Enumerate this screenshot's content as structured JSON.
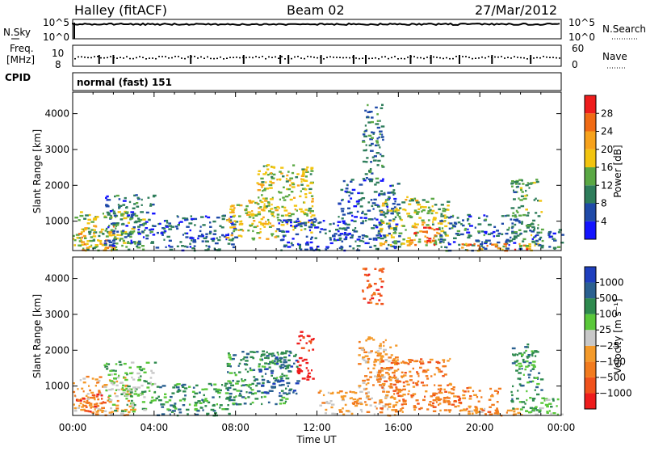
{
  "header": {
    "station": "Halley (fitACF)",
    "beam": "Beam 02",
    "date": "27/Mar/2012"
  },
  "strip_labels": {
    "nsky": "N.Sky",
    "freq_line1": "Freq.",
    "freq_line2": "[MHz]",
    "cpid": "CPID",
    "nsearch": "N.Search",
    "nave": "Nave",
    "mode": "normal (fast) 151",
    "nsky_ticks": [
      "10^5",
      "10^0"
    ],
    "nsearch_ticks": [
      "10^5",
      "10^0"
    ],
    "freq_ticks": [
      "10",
      "8"
    ],
    "nave_ticks": [
      "60",
      "0"
    ]
  },
  "colors": {
    "power_scale": [
      "#1414ff",
      "#1f4aa8",
      "#2e7d5b",
      "#5aa844",
      "#f2c40f",
      "#f7a21c",
      "#f06a14",
      "#ee1c1c"
    ],
    "velocity_scale": [
      "#ee1c1c",
      "#f0521c",
      "#f27b1e",
      "#f49a2a",
      "#c8c8c8",
      "#5ac83a",
      "#2e8a4e",
      "#2a6090",
      "#1e3fbe"
    ]
  },
  "chart_data": [
    {
      "type": "heatmap",
      "panel": "power",
      "ylabel": "Slant Range [km]",
      "xlabel": "Time UT",
      "x_ticks": [
        "00:00",
        "04:00",
        "08:00",
        "12:00",
        "16:00",
        "20:00",
        "00:00"
      ],
      "y_ticks": [
        "1000",
        "2000",
        "3000",
        "4000"
      ],
      "colorbar_label": "Power [dB]",
      "colorbar_ticks": [
        "4",
        "8",
        "12",
        "16",
        "20",
        "24",
        "28"
      ],
      "ylim": [
        180,
        4600
      ],
      "xlim_hours": [
        0,
        24
      ],
      "echo_regions": [
        {
          "t0": 0.0,
          "t1": 3.5,
          "r0": 200,
          "r1": 1300,
          "level": 14
        },
        {
          "t0": 0.0,
          "t1": 2.0,
          "r0": 200,
          "r1": 900,
          "level": 20
        },
        {
          "t0": 1.5,
          "t1": 4.0,
          "r0": 300,
          "r1": 1800,
          "level": 8
        },
        {
          "t0": 4.0,
          "t1": 8.0,
          "r0": 200,
          "r1": 1200,
          "level": 7
        },
        {
          "t0": 7.5,
          "t1": 10.0,
          "r0": 500,
          "r1": 1600,
          "level": 18
        },
        {
          "t0": 9.0,
          "t1": 11.8,
          "r0": 700,
          "r1": 2600,
          "level": 16
        },
        {
          "t0": 10.0,
          "t1": 13.5,
          "r0": 200,
          "r1": 1100,
          "level": 6
        },
        {
          "t0": 13.0,
          "t1": 16.0,
          "r0": 200,
          "r1": 2200,
          "level": 7
        },
        {
          "t0": 14.2,
          "t1": 15.2,
          "r0": 2200,
          "r1": 4300,
          "level": 10
        },
        {
          "t0": 15.0,
          "t1": 18.5,
          "r0": 350,
          "r1": 1700,
          "level": 16
        },
        {
          "t0": 16.5,
          "t1": 18.0,
          "r0": 350,
          "r1": 900,
          "level": 26
        },
        {
          "t0": 18.0,
          "t1": 22.0,
          "r0": 200,
          "r1": 1200,
          "level": 8
        },
        {
          "t0": 19.0,
          "t1": 22.5,
          "r0": 200,
          "r1": 400,
          "level": 24
        },
        {
          "t0": 21.5,
          "t1": 23.0,
          "r0": 300,
          "r1": 2200,
          "level": 12
        },
        {
          "t0": 22.5,
          "t1": 24.0,
          "r0": 200,
          "r1": 800,
          "level": 8
        }
      ]
    },
    {
      "type": "heatmap",
      "panel": "velocity",
      "ylabel": "Slant Range [km]",
      "xlabel": "Time UT",
      "x_ticks": [
        "00:00",
        "04:00",
        "08:00",
        "12:00",
        "16:00",
        "20:00",
        "00:00"
      ],
      "y_ticks": [
        "1000",
        "2000",
        "3000",
        "4000"
      ],
      "colorbar_label": "Velocity [m s⁻¹]",
      "colorbar_ticks": [
        "1000",
        "500",
        "100",
        "25",
        "−25",
        "−100",
        "−500",
        "−1000"
      ],
      "ylim": [
        180,
        4600
      ],
      "xlim_hours": [
        0,
        24
      ],
      "echo_regions": [
        {
          "t0": 0.0,
          "t1": 3.0,
          "r0": 200,
          "r1": 1300,
          "level": 3
        },
        {
          "t0": 0.0,
          "t1": 1.5,
          "r0": 300,
          "r1": 900,
          "level": 1
        },
        {
          "t0": 1.5,
          "t1": 4.0,
          "r0": 300,
          "r1": 1700,
          "level": 5
        },
        {
          "t0": 4.0,
          "t1": 8.0,
          "r0": 200,
          "r1": 1100,
          "level": 6
        },
        {
          "t0": 7.5,
          "t1": 10.5,
          "r0": 500,
          "r1": 2000,
          "level": 6
        },
        {
          "t0": 9.0,
          "t1": 11.0,
          "r0": 800,
          "r1": 2000,
          "level": 7
        },
        {
          "t0": 11.0,
          "t1": 11.8,
          "r0": 1200,
          "r1": 2600,
          "level": 0
        },
        {
          "t0": 12.0,
          "t1": 14.0,
          "r0": 200,
          "r1": 900,
          "level": 3
        },
        {
          "t0": 14.2,
          "t1": 15.2,
          "r0": 3300,
          "r1": 4400,
          "level": 1
        },
        {
          "t0": 14.0,
          "t1": 16.0,
          "r0": 200,
          "r1": 2400,
          "level": 3
        },
        {
          "t0": 15.0,
          "t1": 18.5,
          "r0": 300,
          "r1": 1800,
          "level": 2
        },
        {
          "t0": 17.5,
          "t1": 21.0,
          "r0": 300,
          "r1": 1000,
          "level": 2
        },
        {
          "t0": 19.0,
          "t1": 22.0,
          "r0": 200,
          "r1": 400,
          "level": 3
        },
        {
          "t0": 21.5,
          "t1": 23.0,
          "r0": 300,
          "r1": 2200,
          "level": 6
        },
        {
          "t0": 22.0,
          "t1": 24.0,
          "r0": 200,
          "r1": 700,
          "level": 5
        }
      ]
    }
  ]
}
